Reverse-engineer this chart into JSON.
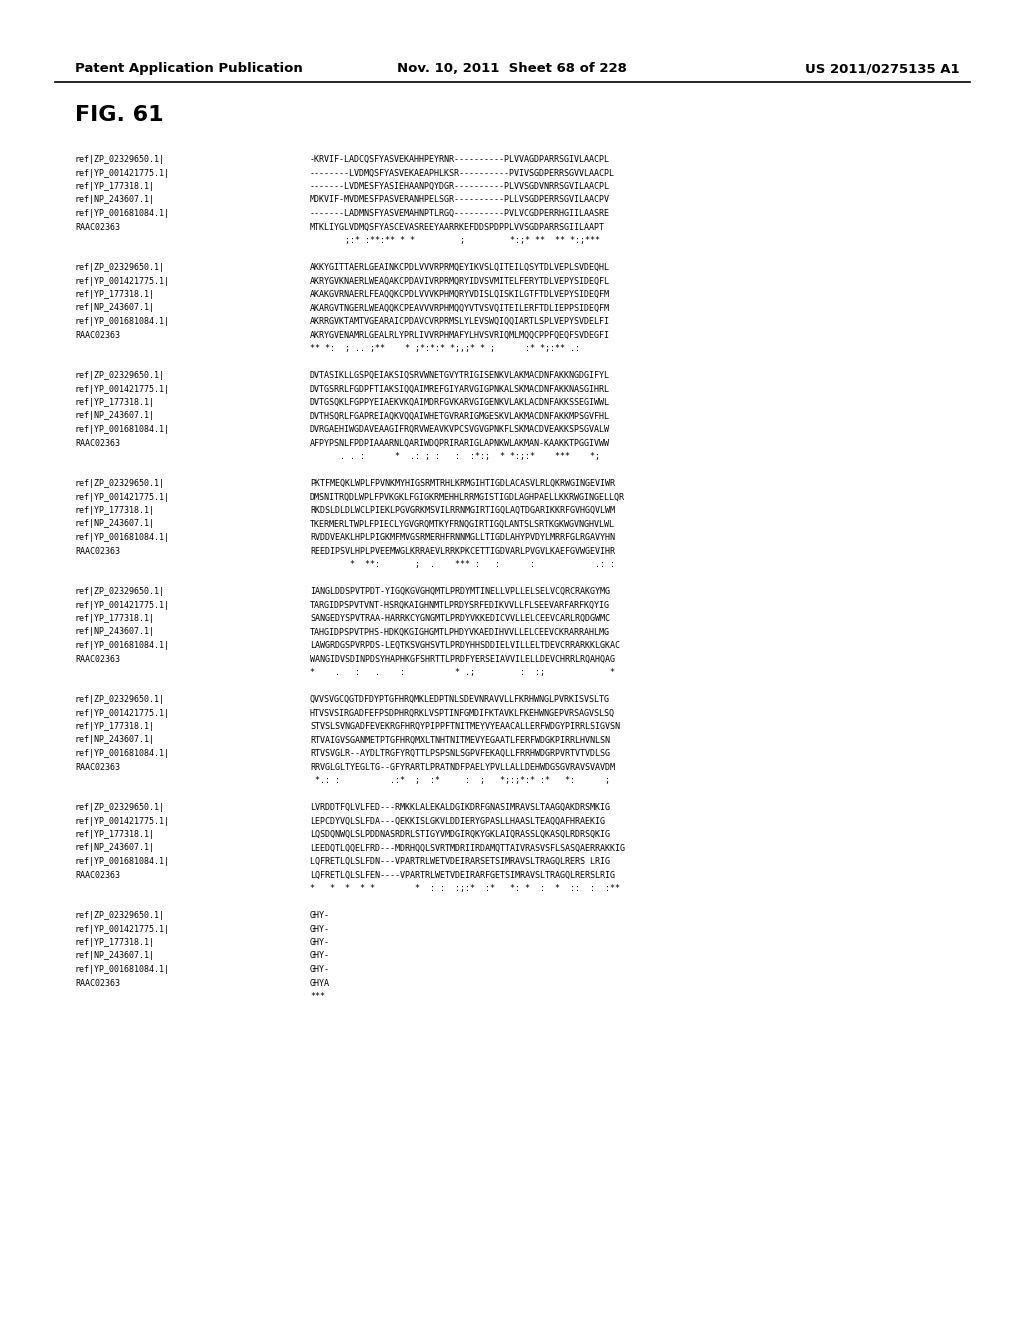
{
  "header_left": "Patent Application Publication",
  "header_mid": "Nov. 10, 2011  Sheet 68 of 228",
  "header_right": "US 2011/0275135 A1",
  "fig_label": "FIG. 61",
  "background_color": "#ffffff",
  "text_color": "#000000",
  "blocks": [
    {
      "lines": [
        [
          "ref|ZP_02329650.1|",
          "-KRVIF-LADCQSFYASVEKAHHPEYRNR----------PLVVAGDPARRSGIVLAACPL"
        ],
        [
          "ref|YP_001421775.1|",
          "--------LVDMQSFYASVEKAEAPHLKSR----------PVIVSGDPERRSGVVLAACPL"
        ],
        [
          "ref|YP_177318.1|",
          "-------LVDMESFYASIEHAANPQYDGR----------PLVVSGDVNRRSGVILAACPL"
        ],
        [
          "ref|NP_243607.1|",
          "MDKVIF-MVDMESFPASVERANHPELSGR----------PLLVSGDPERRSGVILAACPV"
        ],
        [
          "ref|YP_001681084.1|",
          "-------LADMNSFYASVEMAHNPTLRGQ----------PVLVCGDPERRHGIILAASRE"
        ],
        [
          "RAAC02363",
          "MTKLIYGLVDMQSFYASCEVASREEYAARRKEFDDSPDPPLVVSGDPARRSGIILAAPT"
        ],
        [
          "",
          "       ;:* :**:** * *         ;         *:;* **  ** *:;***"
        ]
      ]
    },
    {
      "lines": [
        [
          "ref|ZP_02329650.1|",
          "AKKYGITTAERLGEAINKCPDLVVVRPRMQEYIKVSLQITEILQSYTDLVEPLSVDEQHL"
        ],
        [
          "ref|YP_001421775.1|",
          "AKRYGVKNAERLWEAQAKCPDAVIVRPRMQRYIDVSVMITELFERYTDLVEPYSIDEQFL"
        ],
        [
          "ref|YP_177318.1|",
          "AKAKGVRNAERLFEAQQKCPDLVVVKPHMQRYVDISLQISKILGTFTDLVEPYSIDEQFM"
        ],
        [
          "ref|NP_243607.1|",
          "AKARGVTNGERLWEAQQKCPEAVVVRPHMQQYVTVSVQITEILERFTDLIEPPSIDEQFM"
        ],
        [
          "ref|YP_001681084.1|",
          "AKRRGVKTAMTVGEARAICPDAVCVRPRMSLYLEVSWQIQQIARTLSPLVEPYSVDELFI"
        ],
        [
          "RAAC02363",
          "AKRYGVENAMRLGEALRLYPRLIVVRPHMAFYLHVSVRIQMLMQQCPPFQEQFSVDEGFI"
        ],
        [
          "",
          "** *:  ; .. ;**    * ;*:*:* *;,;* * ;      :* *;:** .:"
        ]
      ]
    },
    {
      "lines": [
        [
          "ref|ZP_02329650.1|",
          "DVTASIKLLGSPQEIAKSIQSRVWNETGVYTRIGISENKVLAKMACDNFAKKNGDGIFYL"
        ],
        [
          "ref|YP_001421775.1|",
          "DVTGSRRLFGDPFTIAKSIQQAIMREFGIYARVGIGPNKALSKMACDNFAKKNASGIHRL"
        ],
        [
          "ref|YP_177318.1|",
          "DVTGSQKLFGPPYEIAEKVKQAIMDRFGVKARVGIGENKVLAKLACDNFAKKSSEGIWWL"
        ],
        [
          "ref|NP_243607.1|",
          "DVTHSQRLFGAPREIAQKVQQAIWHETGVRARIGMGESKVLAKMACDNFAKKMPSGVFHL"
        ],
        [
          "ref|YP_001681084.1|",
          "DVRGAEHIWGDAVEAAGIFRQRVWEAVKVPCSVGVGPNKFLSKMACDVEAKKSPSGVALW"
        ],
        [
          "RAAC02363",
          "AFPYPSNLFPDPIAAARNLQARIWDQPRIRARIGLAPNKWLAKMAN-KAAKKTPGGIVWW"
        ],
        [
          "",
          "      . . :      *  .: ; :   :  :*:;  * *:;:*    ***    *;"
        ]
      ]
    },
    {
      "lines": [
        [
          "ref|ZP_02329650.1|",
          "PKTFMEQKLWPLFPVNKMYHIGSRMTRHLKRMGIHTIGDLACASVLRLQKRWGINGEVIWR"
        ],
        [
          "ref|YP_001421775.1|",
          "DMSNITRQDLWPLFPVKGKLFGIGKRMEHHLRRMGISTIGDLAGHPAELLKKRWGINGELLQR"
        ],
        [
          "ref|YP_177318.1|",
          "RKDSLDLDLWCLPIEKLPGVGRKMSVILRRNMGIRTIGQLAQTDGARIKKRFGVHGQVLWM"
        ],
        [
          "ref|NP_243607.1|",
          "TKERMERLTWPLFPIECLYGVGRQMTKYFRNQGIRTIGQLANTSLSRTKGKWGVNGHVLWL"
        ],
        [
          "ref|YP_001681084.1|",
          "RVDDVEAKLHPLPIGKMFMVGSRMERHFRNNMGLLTIGDLAHYPVDYLMRRFGLRGAVYHN"
        ],
        [
          "RAAC02363",
          "REEDIPSVLHPLPVEEMWGLKRRAEVLRRKPKCETTIGDVARLPVGVLKAEFGVWGEVIHR"
        ],
        [
          "",
          "        *  **:       ;  .    *** :   :      :            .: :"
        ]
      ]
    },
    {
      "lines": [
        [
          "ref|ZP_02329650.1|",
          "IANGLDDSPVTPDT-YIGQKGVGHQMTLPRDYMTINELLVPLLELSELVCQRCRAKGYMG"
        ],
        [
          "ref|YP_001421775.1|",
          "TARGIDPSPVTVNT-HSRQKAIGHNMTLPRDYSRFEDIKVVLLFLSEEVARFARFKQYIG"
        ],
        [
          "ref|YP_177318.1|",
          "SANGEDYSPVTRAA-HARRKCYGNGMTLPRDYVKKEDICVVLLELCEEVCARLRQDGWMC"
        ],
        [
          "ref|NP_243607.1|",
          "TAHGIDPSPVTPHS-HDKQKGIGHGMTLPHDYVKAEDIHVVLLELCEEVCKRARRAHLMG"
        ],
        [
          "ref|YP_001681084.1|",
          "LAWGRDGSPVRPDS-LEQTKSVGHSVTLPRDYHHSDDIELVILLELTDEVCRRARKKLGKAC"
        ],
        [
          "RAAC02363",
          "WANGIDVSDINPDSYHAPHKGFSHRTTLPRDFYERSEIAVVILELLDEVCHRRLRQAHQAG"
        ],
        [
          "",
          "*    .   :   .    :          * .;         :  :;             *"
        ]
      ]
    },
    {
      "lines": [
        [
          "ref|ZP_02329650.1|",
          "QVVSVGCQGTDFDYPTGFHRQMKLEDPTNLSDEVNRAVVLLFKRHWNGLPVRKISVSLTG"
        ],
        [
          "ref|YP_001421775.1|",
          "HTVSVSIRGADFEFPSDPHRQRKLVSPTINFGMDIFKTAVKLFKEHWNGEPVRSAGVSLSQ"
        ],
        [
          "ref|YP_177318.1|",
          "STVSLSVNGADFEVEKRGFHRQYPIPPFTNITMEYVYEAACALLERFWDGYPIRRLSIGVSN"
        ],
        [
          "ref|NP_243607.1|",
          "RTVAIGVSGANMETPTGFHRQMXLTNHTNITMEVYEGAATLFERFWDGKPIRRLHVNLSN"
        ],
        [
          "ref|YP_001681084.1|",
          "RTVSVGLR--AYDLTRGFYRQTTLPSPSNLSGPVFEKAQLLFRRHWDGRPVRTVTVDLSG"
        ],
        [
          "RAAC02363",
          "RRVGLGLTYEGLTG--GFYRARTLPRATNDFPAELYPVLLALLDEHWDGSGVRAVSVAVDM"
        ],
        [
          "",
          " *.: :          .:*  ;  :*     :  ;   *;:;*:* :*   *:      ;"
        ]
      ]
    },
    {
      "lines": [
        [
          "ref|ZP_02329650.1|",
          "LVRDDTFQLVLFED---RMKKLALEKALDGIKDRFGNASIMRAVSLTAAGQAKDRSMKIG"
        ],
        [
          "ref|YP_001421775.1|",
          "LEPCDYVQLSLFDA---QEKKISLGKVLDDIERYGPASLLHAASLTEAQQAFHRAEKIG"
        ],
        [
          "ref|YP_177318.1|",
          "LQSDQNWQLSLPDDNASRDRLSTIGYVMDGIRQKYGKLAIQRASSLQKASQLRDRSQKIG"
        ],
        [
          "ref|NP_243607.1|",
          "LEEDQTLQQELFRD---MDRHQQLSVRTMDRIIRDAMQTTAIVRASVSFLSASQAERRAKKIG"
        ],
        [
          "ref|YP_001681084.1|",
          "LQFRETLQLSLFDN---VPARTRLWETVDEIRARSETSIMRAVSLTRAGQLRERS LRIG"
        ],
        [
          "RAAC02363",
          "LQFRETLQLSLFEN----VPARTRLWETVDEIRARFGETSIMRAVSLTRAGQLRERSLRIG"
        ],
        [
          "",
          "*   *  *  * *        *  : :  :;:*  :*   *: *  :  *  ::  :  :**"
        ]
      ]
    },
    {
      "lines": [
        [
          "ref|ZP_02329650.1|",
          "GHY-"
        ],
        [
          "ref|YP_001421775.1|",
          "GHY-"
        ],
        [
          "ref|YP_177318.1|",
          "GHY-"
        ],
        [
          "ref|NP_243607.1|",
          "GHY-"
        ],
        [
          "ref|YP_001681084.1|",
          "GHY-"
        ],
        [
          "RAAC02363",
          "GHYA"
        ],
        [
          "",
          "***"
        ]
      ]
    }
  ]
}
